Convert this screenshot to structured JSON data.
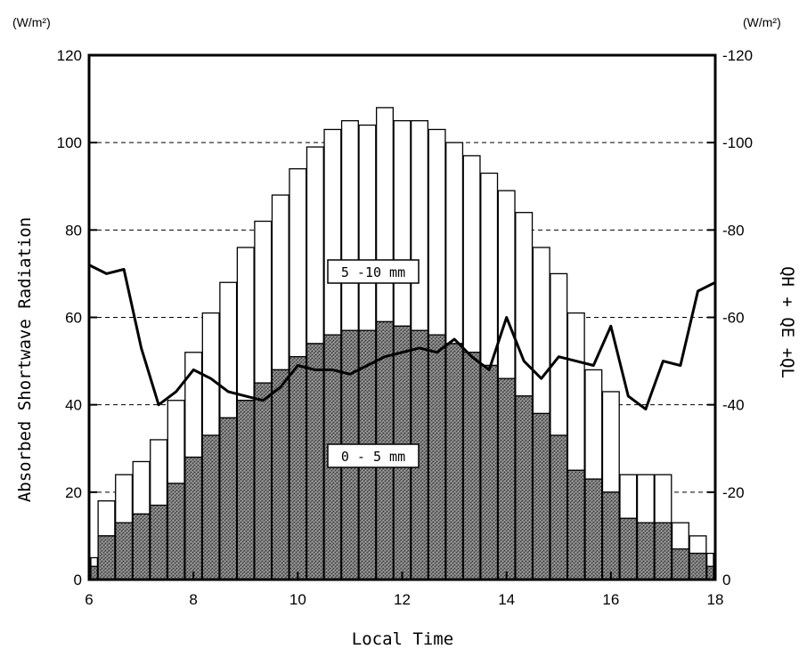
{
  "chart_data": {
    "type": "bar",
    "stacked": true,
    "title": "",
    "xlabel": "Local Time",
    "ylabel": "Absorbed Shortwave Radiation",
    "ylabel_right": "QH + QE +QL",
    "y_unit_left": "(W/m²)",
    "y_unit_right": "(W/m²)",
    "xlim": [
      6,
      18
    ],
    "ylim": [
      0,
      120
    ],
    "ylim_right": [
      0,
      -120
    ],
    "x_ticks": [
      "6",
      "8",
      "10",
      "12",
      "14",
      "16",
      "18"
    ],
    "y_ticks_left": [
      "0",
      "20",
      "40",
      "60",
      "80",
      "100",
      "120"
    ],
    "y_ticks_right": [
      "0",
      "-20",
      "-40",
      "-60",
      "-80",
      "-100",
      "-120"
    ],
    "grid": "horizontal-dashed",
    "x": [
      6,
      6.333,
      6.667,
      7,
      7.333,
      7.667,
      8,
      8.333,
      8.667,
      9,
      9.333,
      9.667,
      10,
      10.333,
      10.667,
      11,
      11.333,
      11.667,
      12,
      12.333,
      12.667,
      13,
      13.333,
      13.667,
      14,
      14.333,
      14.667,
      15,
      15.333,
      15.667,
      16,
      16.333,
      16.667,
      17,
      17.333,
      17.667,
      18
    ],
    "series": [
      {
        "name": "0 - 5 mm",
        "annotation": "0 - 5 mm",
        "kind": "bar",
        "values": [
          3,
          10,
          13,
          15,
          17,
          22,
          28,
          33,
          37,
          41,
          45,
          48,
          51,
          54,
          56,
          57,
          57,
          59,
          58,
          57,
          56,
          54,
          52,
          49,
          46,
          42,
          38,
          33,
          25,
          23,
          20,
          14,
          13,
          13,
          7,
          6,
          3
        ]
      },
      {
        "name": "5 -10 mm",
        "annotation": "5 -10 mm",
        "kind": "bar",
        "values": [
          2,
          8,
          11,
          12,
          15,
          19,
          24,
          28,
          31,
          35,
          37,
          40,
          43,
          45,
          47,
          48,
          47,
          49,
          47,
          48,
          47,
          46,
          45,
          44,
          43,
          42,
          38,
          37,
          36,
          25,
          23,
          10,
          11,
          11,
          6,
          4,
          3
        ]
      },
      {
        "name": "QH + QE +QL",
        "kind": "line",
        "axis": "right",
        "x": [
          6,
          6.333,
          6.667,
          7,
          7.333,
          7.667,
          8,
          8.333,
          8.667,
          9,
          9.333,
          9.667,
          10,
          10.333,
          10.667,
          11,
          11.333,
          11.667,
          12,
          12.333,
          12.667,
          13,
          13.333,
          13.667,
          14,
          14.333,
          14.667,
          15,
          15.333,
          15.667,
          16,
          16.333,
          16.667,
          17,
          17.333,
          17.667,
          18
        ],
        "values": [
          -72,
          -70,
          -71,
          -53,
          -40,
          -43,
          -48,
          -46,
          -43,
          -42,
          -41,
          -44,
          -49,
          -48,
          -48,
          -47,
          -49,
          -51,
          -52,
          -53,
          -52,
          -55,
          -51,
          -48,
          -60,
          -50,
          -46,
          -51,
          -50,
          -49,
          -58,
          -42,
          -39,
          -50,
          -49,
          -66,
          -68
        ]
      }
    ]
  }
}
